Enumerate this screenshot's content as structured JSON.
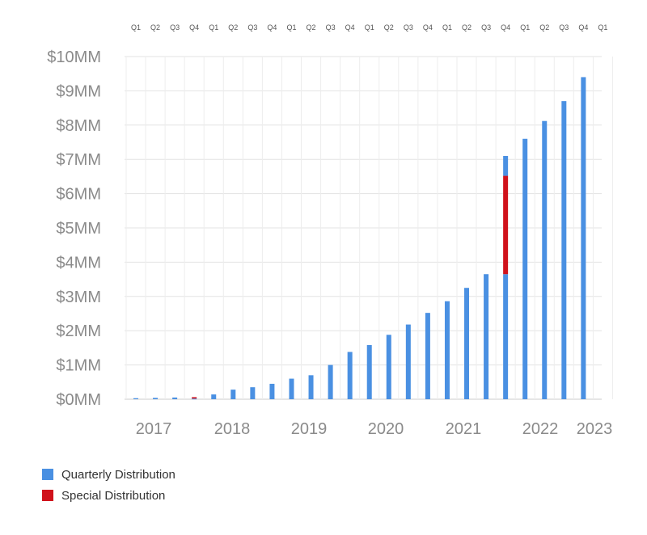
{
  "chart_data": {
    "type": "bar",
    "stacked": true,
    "quarter_labels": [
      "Q1",
      "Q2",
      "Q3",
      "Q4",
      "Q1",
      "Q2",
      "Q3",
      "Q4",
      "Q1",
      "Q2",
      "Q3",
      "Q4",
      "Q1",
      "Q2",
      "Q3",
      "Q4",
      "Q1",
      "Q2",
      "Q3",
      "Q4",
      "Q1",
      "Q2",
      "Q3",
      "Q4",
      "Q1"
    ],
    "year_labels": [
      "2017",
      "2018",
      "2019",
      "2020",
      "2021",
      "2022",
      "2023"
    ],
    "y_tick_labels": [
      "$0MM",
      "$1MM",
      "$2MM",
      "$3MM",
      "$4MM",
      "$5MM",
      "$6MM",
      "$7MM",
      "$8MM",
      "$9MM",
      "$10MM"
    ],
    "ylim": [
      0,
      10
    ],
    "grid": true,
    "series": [
      {
        "name": "Quarterly Distribution",
        "color": "#4a90e2",
        "values": [
          0.03,
          0.04,
          0.05,
          0.02,
          0.14,
          0.28,
          0.35,
          0.45,
          0.6,
          0.7,
          1.0,
          1.38,
          1.58,
          1.88,
          2.18,
          2.52,
          2.86,
          3.25,
          3.65,
          3.65,
          7.6,
          8.12,
          8.7,
          9.4,
          0
        ]
      },
      {
        "name": "Special Distribution",
        "color": "#d0121b",
        "values": [
          0,
          0,
          0,
          0.04,
          0,
          0,
          0,
          0,
          0,
          0,
          0,
          0,
          0,
          0,
          0,
          0,
          0,
          0,
          0,
          2.87,
          0,
          0,
          0,
          0,
          0
        ]
      },
      {
        "name": "",
        "color": "#4a90e2",
        "values": [
          0,
          0,
          0,
          0,
          0,
          0,
          0,
          0,
          0,
          0,
          0,
          0,
          0,
          0,
          0,
          0,
          0,
          0,
          0,
          0.58,
          0,
          0,
          0,
          0,
          0
        ]
      }
    ],
    "legend": {
      "position": "bottom-left",
      "items": [
        {
          "label": "Quarterly Distribution",
          "color": "#4a90e2"
        },
        {
          "label": "Special Distribution",
          "color": "#d0121b"
        }
      ]
    }
  }
}
